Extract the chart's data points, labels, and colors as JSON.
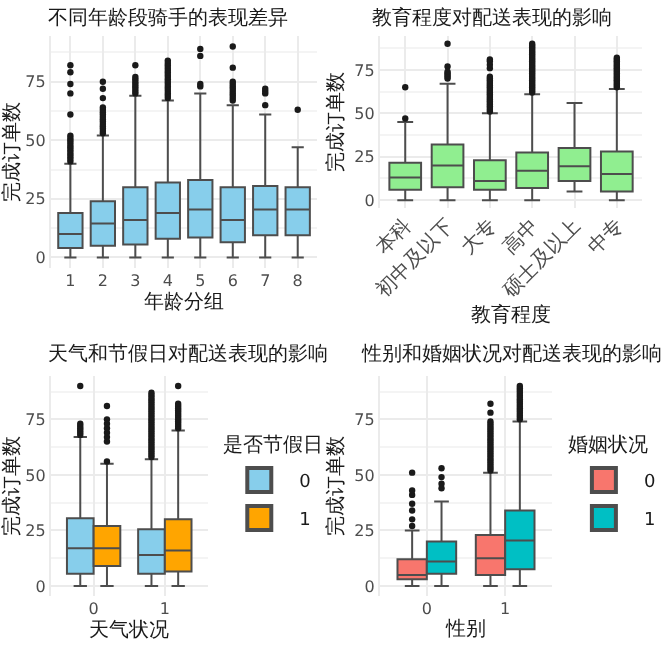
{
  "chart_data": [
    {
      "type": "box",
      "title": "不同年龄段骑手的表现差异",
      "xlabel": "年龄分组",
      "ylabel": "完成订单数",
      "categories": [
        "1",
        "2",
        "3",
        "4",
        "5",
        "6",
        "7",
        "8"
      ],
      "ylim": [
        -4.5,
        94.5
      ],
      "yticks": [
        0,
        {
          "value": 12.5,
          "label": null
        },
        25,
        {
          "value": 37.5,
          "label": null
        },
        50,
        {
          "value": 62.5,
          "label": null
        },
        75,
        {
          "value": 87.5,
          "label": null
        }
      ],
      "grid": true,
      "series": [
        {
          "color": "#87ceeb",
          "boxes": [
            {
              "low": 0,
              "q1": 4,
              "median": 10,
              "q3": 19,
              "high": 40,
              "outliers": [
                41,
                42,
                43,
                44,
                45,
                46,
                47,
                48,
                49,
                50,
                51,
                52,
                61,
                70,
                74,
                79,
                82
              ]
            },
            {
              "low": 0,
              "q1": 5,
              "median": 14.5,
              "q3": 24,
              "high": 52,
              "outliers": [
                53,
                54,
                55,
                56,
                57,
                58,
                59,
                60,
                61,
                62,
                63,
                64,
                68,
                72,
                75
              ]
            },
            {
              "low": 0,
              "q1": 5.5,
              "median": 16,
              "q3": 30,
              "high": 69,
              "outliers": [
                70,
                71,
                72,
                73,
                74,
                75,
                76,
                77,
                82
              ]
            },
            {
              "low": 0,
              "q1": 8,
              "median": 19,
              "q3": 32,
              "high": 67,
              "outliers": [
                68,
                69,
                70,
                71,
                72,
                73,
                74,
                75,
                76,
                77,
                78,
                79,
                80,
                81,
                82,
                83,
                84
              ]
            },
            {
              "low": 0,
              "q1": 8.5,
              "median": 20.5,
              "q3": 33,
              "high": 70,
              "outliers": [
                73,
                74,
                86,
                89
              ]
            },
            {
              "low": 0,
              "q1": 6.5,
              "median": 16,
              "q3": 30,
              "high": 65,
              "outliers": [
                67,
                68,
                69,
                70,
                71,
                72,
                73,
                74,
                75,
                81,
                90
              ]
            },
            {
              "low": 0,
              "q1": 9.5,
              "median": 20.5,
              "q3": 30.5,
              "high": 61,
              "outliers": [
                65,
                70,
                71,
                72
              ]
            },
            {
              "low": 0,
              "q1": 9.5,
              "median": 20.5,
              "q3": 30,
              "high": 47,
              "outliers": [
                63
              ]
            }
          ]
        }
      ]
    },
    {
      "type": "box",
      "title": "教育程度对配送表现的影响",
      "xlabel": "教育程度",
      "ylabel": "完成订单数",
      "categories": [
        "本科",
        "初中及以下",
        "大专",
        "高中",
        "硕士及以上",
        "中专"
      ],
      "ylim": [
        -4.5,
        94.5
      ],
      "yticks": [
        0,
        {
          "value": 12.5,
          "label": null
        },
        25,
        {
          "value": 37.5,
          "label": null
        },
        50,
        {
          "value": 62.5,
          "label": null
        },
        75,
        {
          "value": 87.5,
          "label": null
        }
      ],
      "grid": true,
      "series": [
        {
          "color": "#90ee90",
          "boxes": [
            {
              "low": 0,
              "q1": 6,
              "median": 13,
              "q3": 21.5,
              "high": 45,
              "outliers": [
                47,
                65
              ]
            },
            {
              "low": 0,
              "q1": 7.5,
              "median": 20,
              "q3": 32,
              "high": 67,
              "outliers": [
                70,
                71,
                72,
                73,
                74,
                77,
                90
              ]
            },
            {
              "low": 0,
              "q1": 6,
              "median": 11,
              "q3": 23,
              "high": 50,
              "outliers": [
                51,
                52,
                53,
                54,
                55,
                56,
                57,
                58,
                59,
                60,
                61,
                62,
                63,
                64,
                65,
                66,
                67,
                68,
                69,
                70,
                71,
                76,
                78,
                80,
                81
              ]
            },
            {
              "low": 0,
              "q1": 7,
              "median": 17,
              "q3": 27.5,
              "high": 61,
              "outliers": [
                62,
                63,
                64,
                65,
                66,
                67,
                68,
                69,
                70,
                71,
                72,
                73,
                74,
                75,
                76,
                77,
                78,
                79,
                80,
                81,
                82,
                83,
                84,
                85,
                86,
                87,
                88,
                89,
                90
              ]
            },
            {
              "low": 5,
              "q1": 11,
              "median": 19.5,
              "q3": 30,
              "high": 56
            },
            {
              "low": 0,
              "q1": 5,
              "median": 15,
              "q3": 28,
              "high": 64,
              "outliers": [
                65,
                66,
                67,
                68,
                69,
                70,
                71,
                72,
                73,
                74,
                75,
                76,
                77,
                78,
                79,
                80,
                81,
                82
              ]
            }
          ]
        }
      ]
    },
    {
      "type": "box",
      "title": "天气和节假日对配送表现的影响",
      "xlabel": "天气状况",
      "ylabel": "完成订单数",
      "legend_title": "是否节假日",
      "legend": "right",
      "categories": [
        "0",
        "1"
      ],
      "ylim": [
        -4.5,
        94.5
      ],
      "yticks": [
        0,
        {
          "value": 12.5,
          "label": null
        },
        25,
        {
          "value": 37.5,
          "label": null
        },
        50,
        {
          "value": 62.5,
          "label": null
        },
        75,
        {
          "value": 87.5,
          "label": null
        }
      ],
      "grid": true,
      "series": [
        {
          "name": "0",
          "color": "#87ceeb",
          "boxes": [
            {
              "low": 0,
              "q1": 5.5,
              "median": 17,
              "q3": 30.5,
              "high": 67,
              "outliers": [
                68,
                69,
                70,
                71,
                72,
                73,
                90
              ]
            },
            {
              "low": 0,
              "q1": 5.5,
              "median": 14,
              "q3": 25.5,
              "high": 57,
              "outliers": [
                58,
                59,
                60,
                61,
                62,
                63,
                64,
                65,
                66,
                67,
                68,
                69,
                70,
                71,
                72,
                73,
                74,
                75,
                76,
                77,
                78,
                79,
                80,
                81,
                82,
                83,
                84,
                85,
                86,
                87
              ]
            }
          ]
        },
        {
          "name": "1",
          "color": "#ffa500",
          "boxes": [
            {
              "low": 0,
              "q1": 9,
              "median": 17,
              "q3": 27,
              "high": 55,
              "outliers": [
                56,
                65,
                67,
                69,
                71,
                73,
                75,
                81
              ]
            },
            {
              "low": 0,
              "q1": 6.5,
              "median": 16,
              "q3": 30,
              "high": 70,
              "outliers": [
                71,
                72,
                73,
                74,
                75,
                76,
                77,
                78,
                79,
                80,
                81,
                82,
                90
              ]
            }
          ]
        }
      ]
    },
    {
      "type": "box",
      "title": "性别和婚姻状况对配送表现的影响",
      "xlabel": "性别",
      "ylabel": "完成订单数",
      "legend_title": "婚姻状况",
      "legend": "right",
      "categories": [
        "0",
        "1"
      ],
      "ylim": [
        -4.5,
        94.5
      ],
      "yticks": [
        0,
        {
          "value": 12.5,
          "label": null
        },
        25,
        {
          "value": 37.5,
          "label": null
        },
        50,
        {
          "value": 62.5,
          "label": null
        },
        75,
        {
          "value": 87.5,
          "label": null
        }
      ],
      "grid": true,
      "series": [
        {
          "name": "0",
          "color": "#f8766d",
          "boxes": [
            {
              "low": 0,
              "q1": 3,
              "median": 5,
              "q3": 12,
              "high": 25,
              "outliers": [
                27,
                30,
                34,
                37,
                41,
                43,
                51
              ]
            },
            {
              "low": 0,
              "q1": 5,
              "median": 12.5,
              "q3": 23,
              "high": 51,
              "outliers": [
                52,
                53,
                54,
                55,
                56,
                57,
                58,
                59,
                60,
                61,
                62,
                63,
                64,
                65,
                66,
                67,
                68,
                69,
                70,
                71,
                72,
                73,
                74,
                78,
                82
              ]
            }
          ]
        },
        {
          "name": "1",
          "color": "#00bfc4",
          "boxes": [
            {
              "low": 0,
              "q1": 5.5,
              "median": 11,
              "q3": 20,
              "high": 38,
              "outliers": [
                44,
                46,
                49,
                53
              ]
            },
            {
              "low": 0,
              "q1": 7.5,
              "median": 20.5,
              "q3": 34,
              "high": 74,
              "outliers": [
                75,
                76,
                77,
                78,
                79,
                80,
                81,
                82,
                83,
                84,
                85,
                86,
                87,
                88,
                89,
                90
              ]
            }
          ]
        }
      ]
    }
  ]
}
